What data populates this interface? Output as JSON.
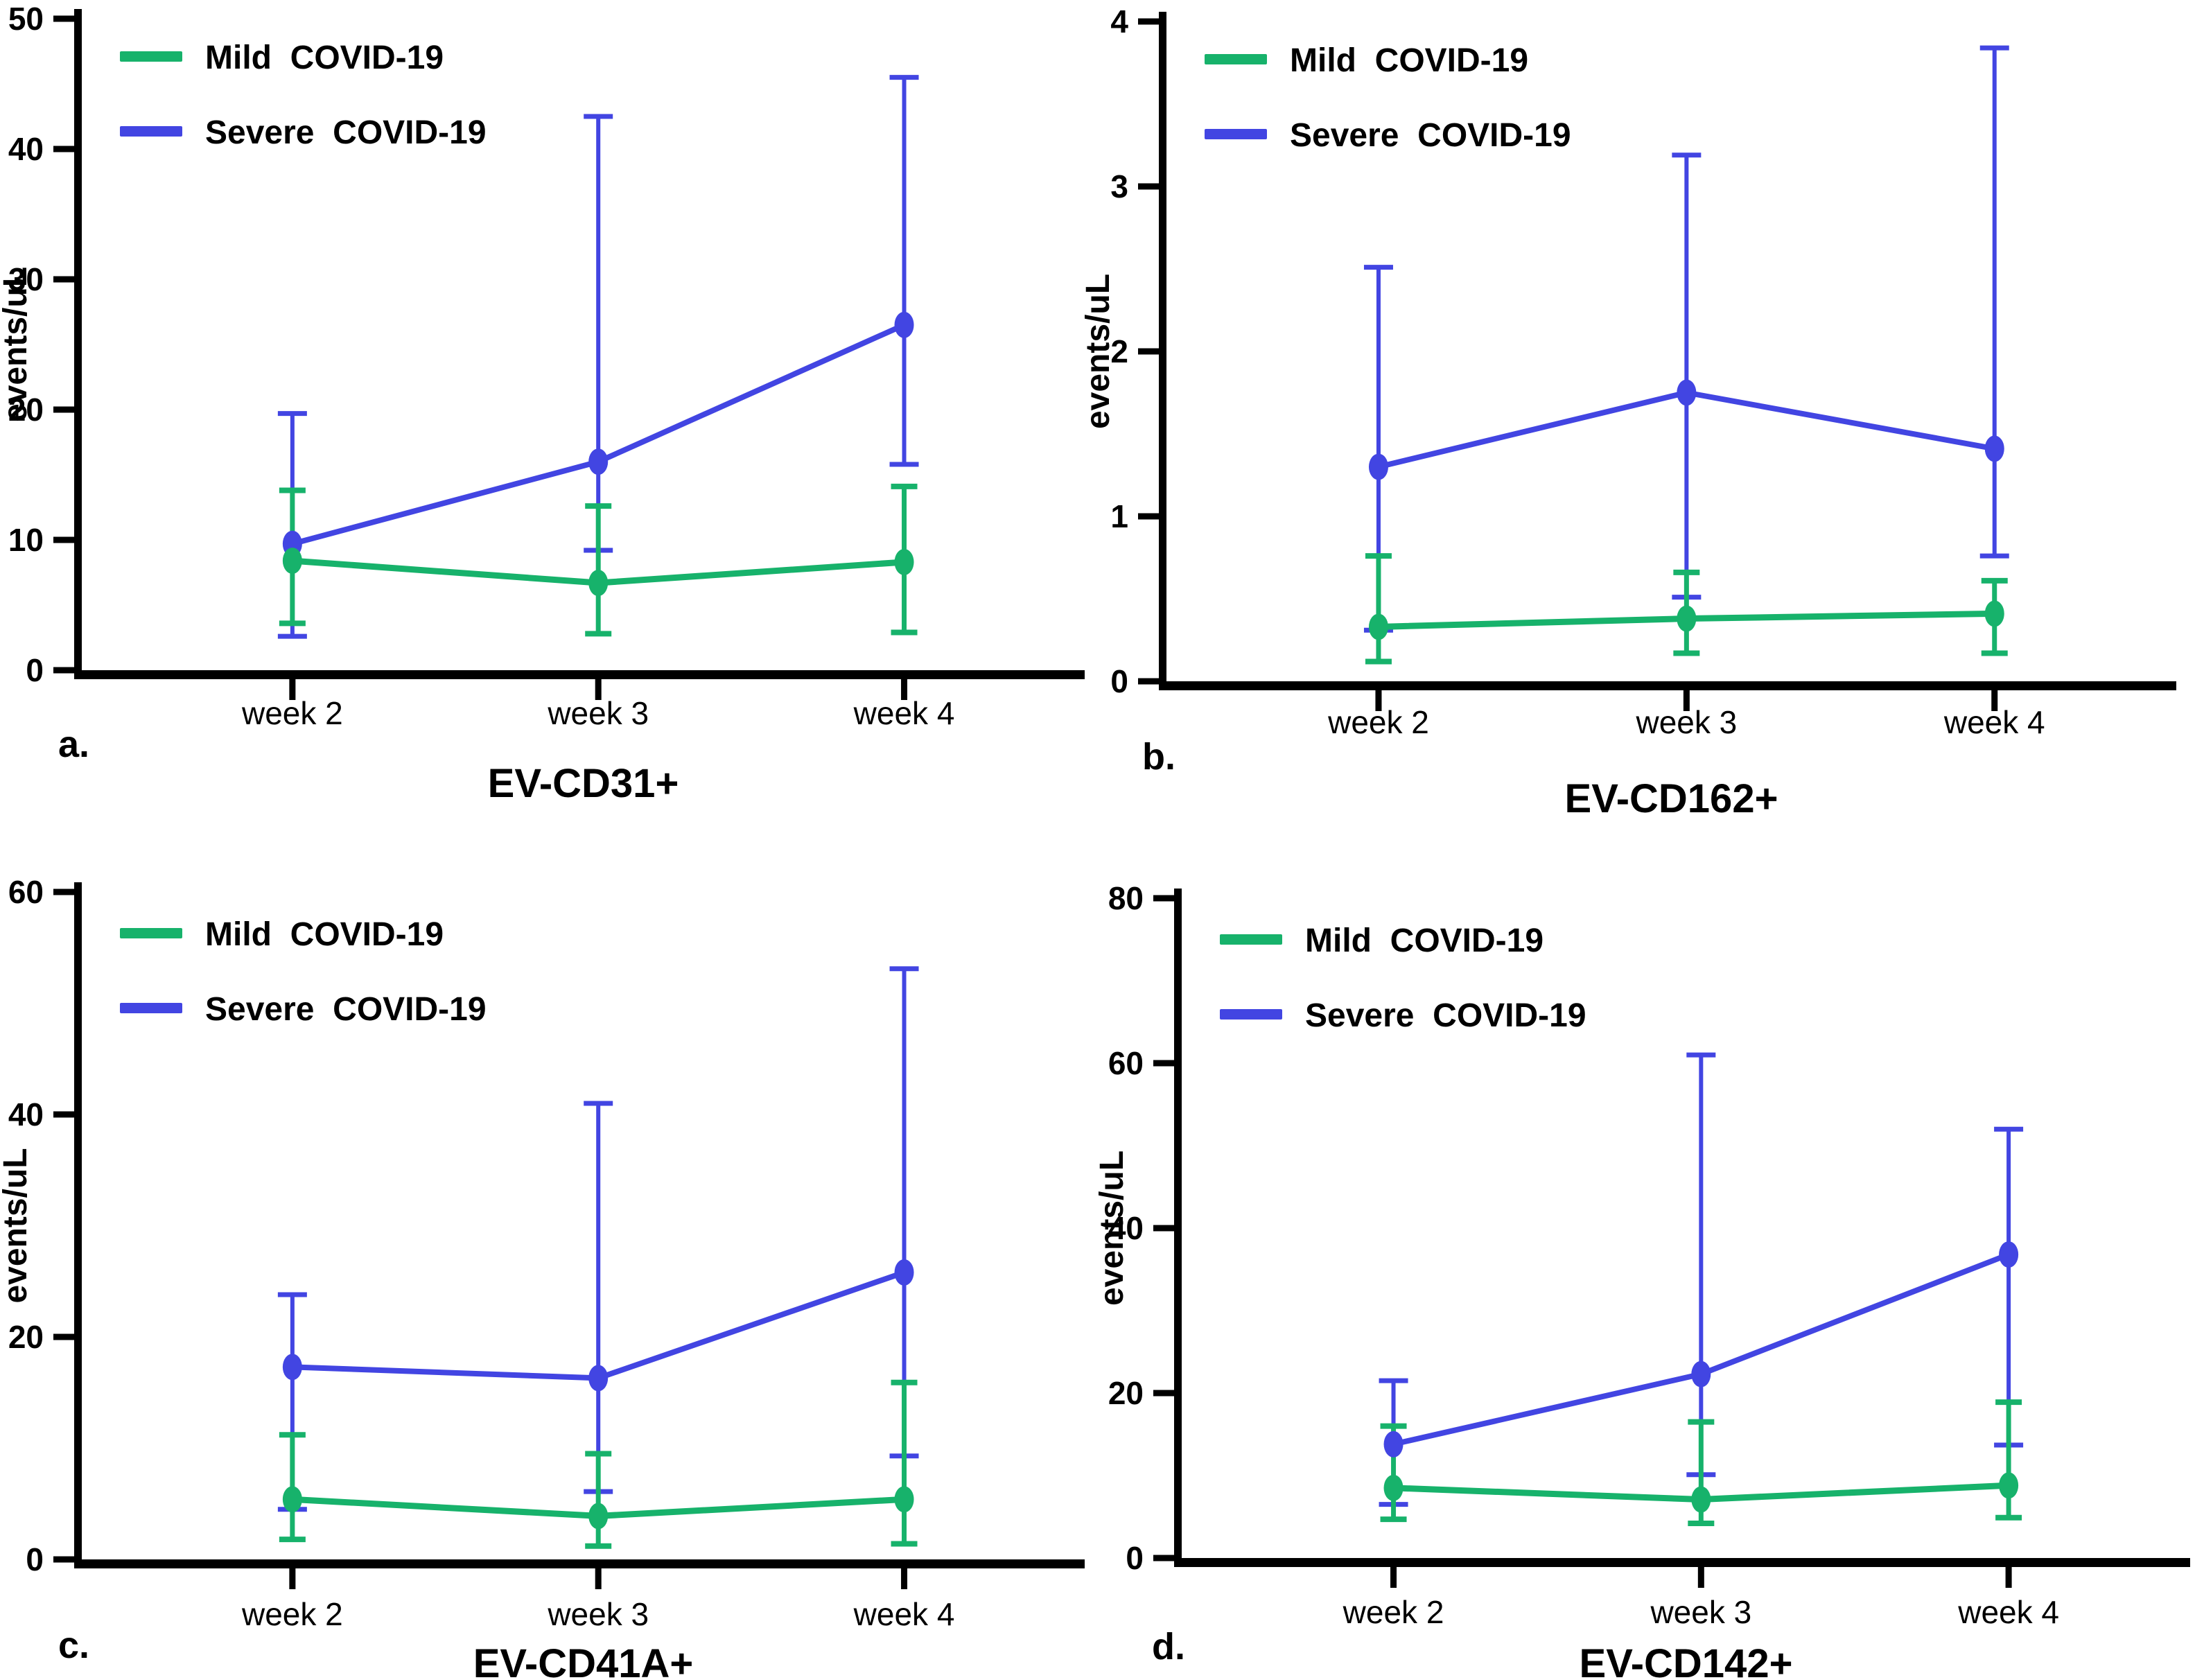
{
  "figure": {
    "background_color": "#FFFFFF",
    "axis_color": "#000000",
    "y_axis_label": "events/uL",
    "categories": [
      "week 2",
      "week 3",
      "week 4"
    ],
    "legend": {
      "position": "top-left-inside-each-panel",
      "entries": [
        {
          "key": "mild",
          "label": "Mild  COVID-19",
          "color": "#17B26B"
        },
        {
          "key": "severe",
          "label": "Severe  COVID-19",
          "color": "#4245E2"
        }
      ]
    }
  },
  "chart_data": [
    {
      "type": "line",
      "panel_letter": "a.",
      "title": "EV-CD31+",
      "xlabel": "",
      "ylabel": "events/uL",
      "categories": [
        "week 2",
        "week 3",
        "week 4"
      ],
      "ylim": [
        0,
        50
      ],
      "yticks": [
        0,
        10,
        20,
        30,
        40,
        50
      ],
      "grid": false,
      "series": [
        {
          "name": "Mild  COVID-19",
          "color": "#17B26B",
          "values": [
            8.4,
            6.7,
            8.3
          ],
          "err_low": [
            3.6,
            2.8,
            2.9
          ],
          "err_high": [
            13.8,
            12.6,
            14.1
          ]
        },
        {
          "name": "Severe  COVID-19",
          "color": "#4245E2",
          "values": [
            9.7,
            16.0,
            26.5
          ],
          "err_low": [
            2.6,
            9.2,
            15.8
          ],
          "err_high": [
            19.7,
            42.5,
            45.5
          ]
        }
      ]
    },
    {
      "type": "line",
      "panel_letter": "b.",
      "title": "EV-CD162+",
      "xlabel": "",
      "ylabel": "events/uL",
      "categories": [
        "week 2",
        "week 3",
        "week 4"
      ],
      "ylim": [
        0,
        4
      ],
      "yticks": [
        0,
        1,
        2,
        3,
        4
      ],
      "grid": false,
      "series": [
        {
          "name": "Mild  COVID-19",
          "color": "#17B26B",
          "values": [
            0.33,
            0.38,
            0.41
          ],
          "err_low": [
            0.12,
            0.17,
            0.17
          ],
          "err_high": [
            0.76,
            0.66,
            0.61
          ]
        },
        {
          "name": "Severe  COVID-19",
          "color": "#4245E2",
          "values": [
            1.3,
            1.75,
            1.41
          ],
          "err_low": [
            0.31,
            0.51,
            0.76
          ],
          "err_high": [
            2.51,
            3.19,
            3.84
          ]
        }
      ]
    },
    {
      "type": "line",
      "panel_letter": "c.",
      "title": "EV-CD41A+",
      "xlabel": "",
      "ylabel": "events/uL",
      "categories": [
        "week 2",
        "week 3",
        "week 4"
      ],
      "ylim": [
        0,
        60
      ],
      "yticks": [
        0,
        20,
        40,
        60
      ],
      "grid": false,
      "series": [
        {
          "name": "Mild  COVID-19",
          "color": "#17B26B",
          "values": [
            5.4,
            3.9,
            5.4
          ],
          "err_low": [
            1.8,
            1.2,
            1.4
          ],
          "err_high": [
            11.2,
            9.5,
            15.9
          ]
        },
        {
          "name": "Severe  COVID-19",
          "color": "#4245E2",
          "values": [
            17.3,
            16.3,
            25.8
          ],
          "err_low": [
            4.5,
            6.1,
            9.3
          ],
          "err_high": [
            23.8,
            41.0,
            53.1
          ]
        }
      ]
    },
    {
      "type": "line",
      "panel_letter": "d.",
      "title": "EV-CD142+",
      "xlabel": "",
      "ylabel": "events/uL",
      "categories": [
        "week 2",
        "week 3",
        "week 4"
      ],
      "ylim": [
        0,
        80
      ],
      "yticks": [
        0,
        20,
        40,
        60,
        80
      ],
      "grid": false,
      "series": [
        {
          "name": "Mild  COVID-19",
          "color": "#17B26B",
          "values": [
            8.5,
            7.1,
            8.8
          ],
          "err_low": [
            4.7,
            4.2,
            4.9
          ],
          "err_high": [
            16.0,
            16.5,
            18.9
          ]
        },
        {
          "name": "Severe  COVID-19",
          "color": "#4245E2",
          "values": [
            13.8,
            22.3,
            36.8
          ],
          "err_low": [
            6.5,
            10.1,
            13.7
          ],
          "err_high": [
            21.5,
            61.0,
            52.0
          ]
        }
      ]
    }
  ]
}
